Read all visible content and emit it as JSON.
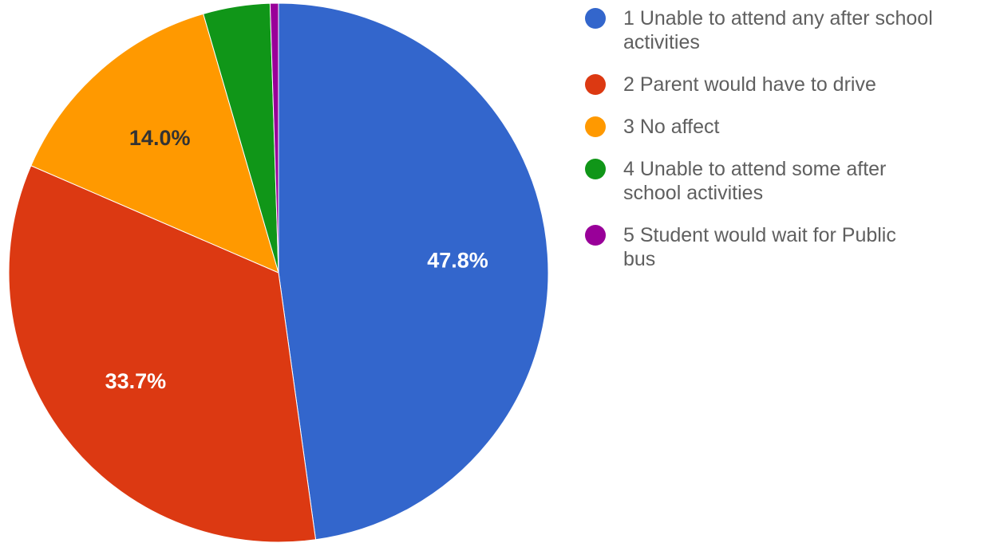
{
  "chart_data": {
    "type": "pie",
    "categories": [
      "1 Unable to attend any after school activities",
      "2 Parent would have to drive",
      "3 No affect",
      "4 Unable to attend some after school activities",
      "5 Student would wait for Public bus"
    ],
    "values": [
      47.8,
      33.7,
      14.0,
      4.0,
      0.5
    ],
    "slice_labels": [
      "47.8%",
      "33.7%",
      "14.0%",
      "",
      ""
    ],
    "colors": [
      "#3366cc",
      "#dc3912",
      "#ff9900",
      "#109618",
      "#990099"
    ],
    "label_colors": [
      "#ffffff",
      "#ffffff",
      "#333333",
      "#ffffff",
      "#ffffff"
    ],
    "start_angle_deg": 0,
    "direction": "clockwise",
    "legend": {
      "position": "right",
      "entries": [
        {
          "line1": "1 Unable to attend any after school",
          "line2": "activities"
        },
        {
          "line1": "2 Parent would have to drive",
          "line2": ""
        },
        {
          "line1": "3 No affect",
          "line2": ""
        },
        {
          "line1": "4 Unable to attend some after",
          "line2": "school activities"
        },
        {
          "line1": "5 Student would wait for Public",
          "line2": "bus"
        }
      ]
    }
  }
}
